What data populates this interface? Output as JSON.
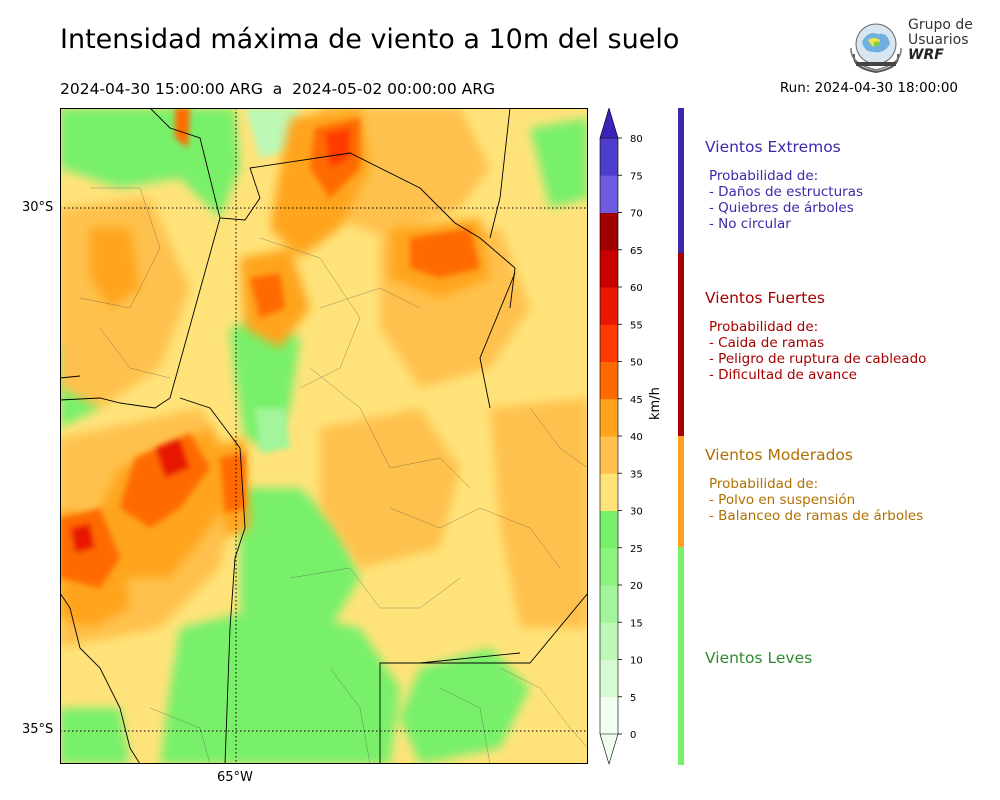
{
  "title": "Intensidad máxima de viento a 10m del suelo",
  "subtitle": "2024-04-30 15:00:00 ARG  a  2024-05-02 00:00:00 ARG",
  "run": "Run: 2024-04-30 18:00:00",
  "logo": {
    "line1": "Grupo de",
    "line2": "Usuarios",
    "line3": "WRF",
    "icon": "globe-satellite-icon"
  },
  "map": {
    "lat_labels": [
      "30°S",
      "35°S"
    ],
    "lon_labels": [
      "65°W"
    ]
  },
  "colorbar": {
    "unit": "km/h",
    "ticks": [
      "0",
      "5",
      "10",
      "15",
      "20",
      "25",
      "30",
      "35",
      "40",
      "45",
      "50",
      "55",
      "60",
      "65",
      "70",
      "75",
      "80"
    ],
    "colors": [
      "#f1fff0",
      "#d6fbd2",
      "#bef8b6",
      "#a2f59a",
      "#8bf37f",
      "#78f06a",
      "#ffe37a",
      "#ffc14d",
      "#ffa41c",
      "#ff6a00",
      "#ff3a00",
      "#e81800",
      "#c80000",
      "#a00000",
      "#6e5ce0",
      "#4e3ccc",
      "#3c22b8"
    ],
    "over_color": "#3c22b8"
  },
  "categories": [
    {
      "name": "Vientos Extremos",
      "color": "#3c28aa",
      "bar_color": "#3c28aa",
      "desc": "Probabilidad de:\n- Daños de estructuras\n- Quiebres de árboles\n- No circular"
    },
    {
      "name": "Vientos Fuertes",
      "color": "#a50000",
      "bar_color": "#a50000",
      "desc": "Probabilidad de:\n- Caida de ramas\n- Peligro de ruptura de cableado\n- Dificultad de avance"
    },
    {
      "name": "Vientos Moderados",
      "color": "#b07000",
      "bar_color": "#ffa020",
      "desc": "Probabilidad de:\n- Polvo en suspensión\n- Balanceo de ramas de árboles"
    },
    {
      "name": "Vientos Leves",
      "color": "#2e8b2e",
      "bar_color": "#78f06a",
      "desc": ""
    }
  ]
}
